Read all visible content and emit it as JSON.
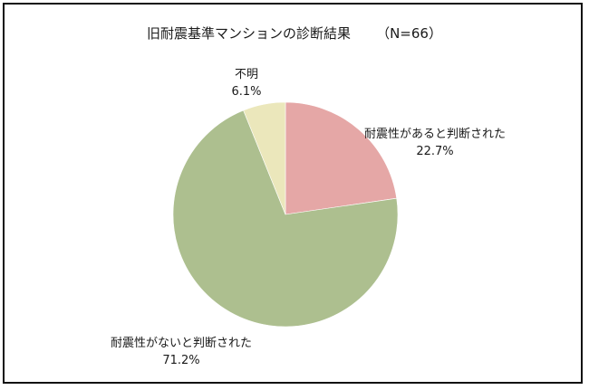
{
  "chart_data": {
    "type": "pie",
    "title": "旧耐震基準マンションの診断結果",
    "subtitle": "（N=66）",
    "slices": [
      {
        "label": "耐震性があると判断された",
        "value": 22.7,
        "value_label": "22.7%",
        "color": "#e5a7a6"
      },
      {
        "label": "耐震性がないと判断された",
        "value": 71.2,
        "value_label": "71.2%",
        "color": "#adbf8f"
      },
      {
        "label": "不明",
        "value": 6.1,
        "value_label": "6.1%",
        "color": "#ebe7bb"
      }
    ]
  }
}
